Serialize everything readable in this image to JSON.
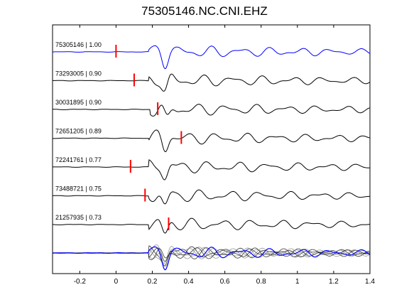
{
  "title": "75305146.NC.CNI.EHZ",
  "chart_data": {
    "type": "line",
    "title": "75305146.NC.CNI.EHZ",
    "xlabel": "",
    "ylabel": "",
    "xlim": [
      -0.35,
      1.4
    ],
    "x_ticks": [
      -0.2,
      0,
      0.2,
      0.4,
      0.6,
      0.8,
      1,
      1.2,
      1.4
    ],
    "x_tick_labels": [
      "-0.2",
      "0",
      "0.2",
      "0.4",
      "0.6",
      "0.8",
      "1",
      "1.2",
      "1.4"
    ],
    "grid": false,
    "colors": {
      "reference": "#0000ff",
      "trace": "#000000",
      "pick": "#ff0000",
      "stack": "#808080"
    },
    "traces": [
      {
        "label": "75305146 | 1.00",
        "id": "75305146",
        "cc": 1.0,
        "pick_time": 0.0,
        "color": "#0000ff",
        "lag": 0.0,
        "amp": 1.0
      },
      {
        "label": "73293005 | 0.90",
        "id": "73293005",
        "cc": 0.9,
        "pick_time": 0.1,
        "color": "#000000",
        "lag": 0.0,
        "amp": 1.0
      },
      {
        "label": "30031895 | 0.90",
        "id": "30031895",
        "cc": 0.9,
        "pick_time": 0.23,
        "color": "#000000",
        "lag": 0.01,
        "amp": 1.0
      },
      {
        "label": "72651205 | 0.89",
        "id": "72651205",
        "cc": 0.89,
        "pick_time": 0.36,
        "color": "#000000",
        "lag": 0.0,
        "amp": 1.0
      },
      {
        "label": "72241761 | 0.77",
        "id": "72241761",
        "cc": 0.77,
        "pick_time": 0.08,
        "color": "#000000",
        "lag": 0.0,
        "amp": 1.0
      },
      {
        "label": "73488721 | 0.75",
        "id": "73488721",
        "cc": 0.75,
        "pick_time": 0.16,
        "color": "#000000",
        "lag": 0.0,
        "amp": 1.0
      },
      {
        "label": "21257935 | 0.73",
        "id": "21257935",
        "cc": 0.73,
        "pick_time": 0.29,
        "color": "#000000",
        "lag": 0.0,
        "amp": 1.0
      }
    ],
    "stack": {
      "present": true,
      "colors": [
        "#0000ff",
        "#808080",
        "#000000"
      ]
    }
  }
}
